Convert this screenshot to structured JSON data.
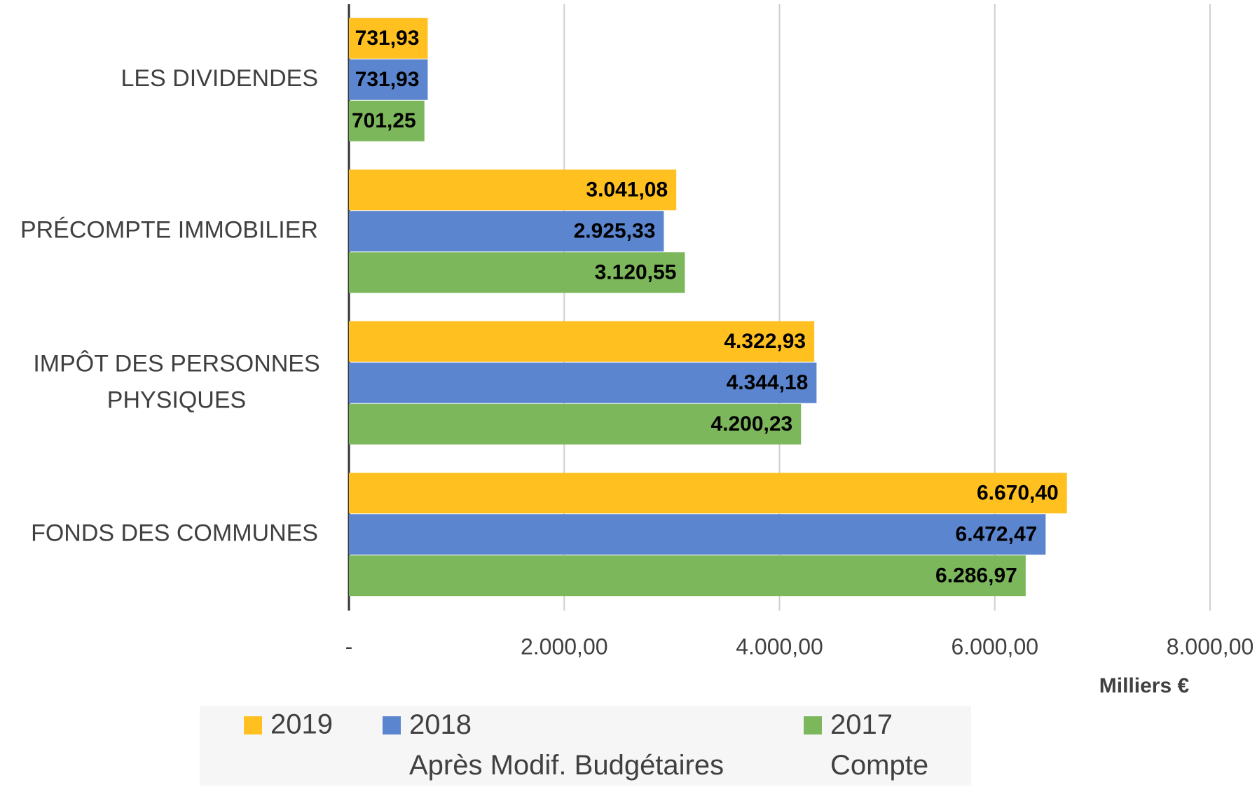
{
  "chart_data": {
    "type": "hbar",
    "categories": [
      "LES DIVIDENDES",
      "PRÉCOMPTE IMMOBILIER",
      "IMPÔT DES PERSONNES\nPHYSIQUES",
      "FONDS DES COMMUNES"
    ],
    "series": [
      {
        "name": "2019",
        "color": "#FFC020",
        "values": [
          731.93,
          3041.08,
          4322.93,
          6670.4
        ],
        "value_labels": [
          "731,93",
          "3.041,08",
          "4.322,93",
          "6.670,40"
        ]
      },
      {
        "name": "2018\nAprès Modif. Budgétaires",
        "color": "#5B86CF",
        "values": [
          731.93,
          2925.33,
          4344.18,
          6472.47
        ],
        "value_labels": [
          "731,93",
          "2.925,33",
          "4.344,18",
          "6.472,47"
        ]
      },
      {
        "name": "2017\nCompte",
        "color": "#7DB75B",
        "values": [
          701.25,
          3120.55,
          4200.23,
          6286.97
        ],
        "value_labels": [
          "701,25",
          "3.120,55",
          "4.200,23",
          "6.286,97"
        ]
      }
    ],
    "x_axis_label": "Milliers €",
    "xlim": [
      0,
      8000
    ],
    "xticks": [
      {
        "value": 0,
        "label": "-"
      },
      {
        "value": 2000,
        "label": "2.000,00"
      },
      {
        "value": 4000,
        "label": "4.000,00"
      },
      {
        "value": 6000,
        "label": "6.000,00"
      },
      {
        "value": 8000,
        "label": "8.000,00"
      }
    ],
    "grid": true,
    "legend": "bottom"
  }
}
